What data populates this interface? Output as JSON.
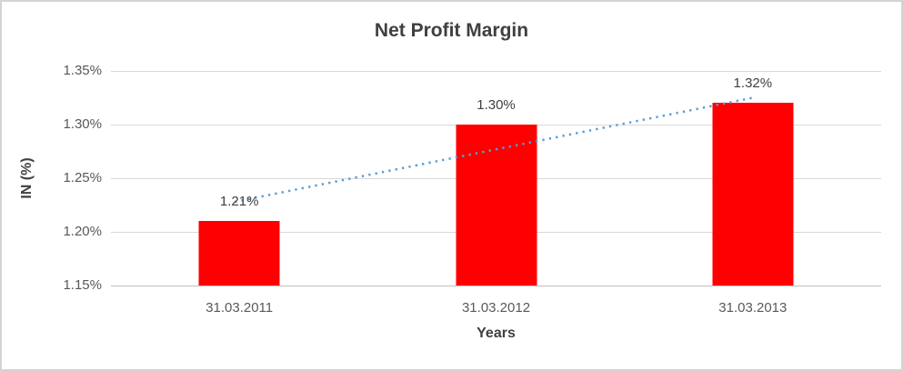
{
  "chart_data": {
    "type": "bar",
    "title": "Net Profit Margin",
    "xlabel": "Years",
    "ylabel": "IN (%)",
    "categories": [
      "31.03.2011",
      "31.03.2012",
      "31.03.2013"
    ],
    "values": [
      1.21,
      1.3,
      1.32
    ],
    "value_labels": [
      "1.21%",
      "1.30%",
      "1.32%"
    ],
    "ylim": [
      1.15,
      1.35
    ],
    "ytick_step": 0.05,
    "ytick_labels": [
      "1.15%",
      "1.20%",
      "1.25%",
      "1.30%",
      "1.35%"
    ],
    "grid": true,
    "legend": false,
    "trendline": {
      "type": "linear",
      "style": "dotted",
      "start_value": 1.228,
      "end_value": 1.325
    },
    "colors": {
      "bar": "#FF0000",
      "trendline": "#5B9BD5",
      "title_text": "#404040",
      "axis_title_text": "#404040",
      "tick_text": "#595959",
      "data_label_text": "#404040",
      "gridline": "#D9D9D9",
      "axis_line": "#C0C0C0",
      "border": "#D4D4D4",
      "background": "#FFFFFF"
    }
  }
}
